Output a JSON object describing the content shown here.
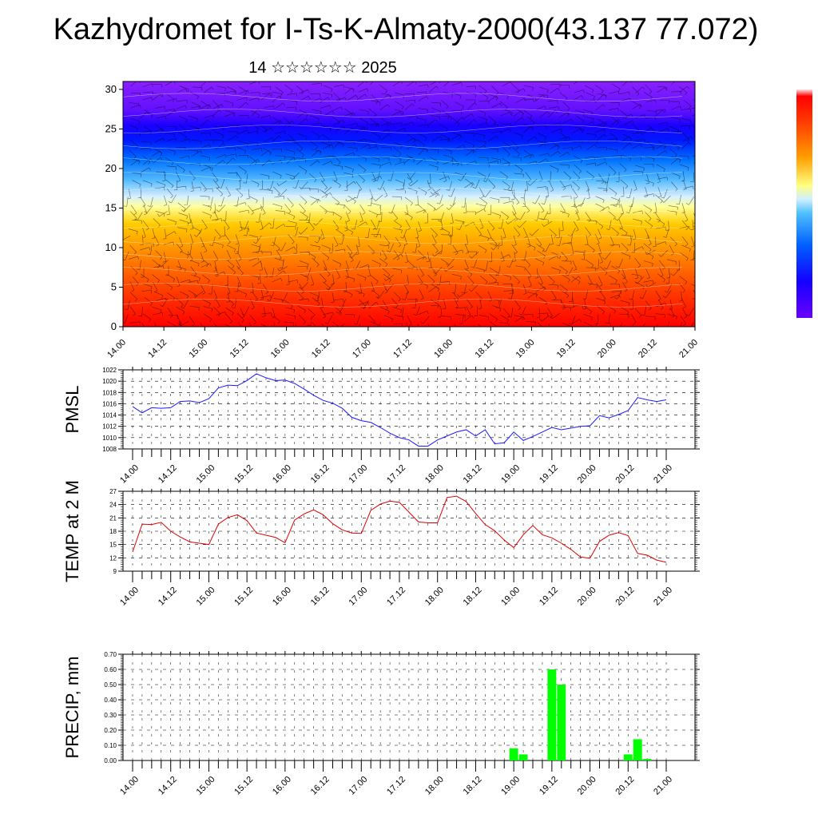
{
  "title": "Kazhydromet for I-Ts-K-Almaty-2000(43.137 77.072)",
  "subtitle": "14 ☆☆☆☆☆☆ 2025",
  "colors": {
    "pmsl_line": "#1a1aff",
    "temp_line": "#e00000",
    "precip_bar": "#00ff00",
    "colorbar": [
      "#ff0000",
      "#ff4000",
      "#ff8000",
      "#ffb000",
      "#ffe000",
      "#ffff90",
      "#b0e0ff",
      "#40b0ff",
      "#0080ff",
      "#0030ff",
      "#2000ff",
      "#8020ff"
    ]
  },
  "chart_data": [
    {
      "type": "heatmap",
      "title": "",
      "xlabel": "",
      "ylabel": "",
      "x_tick_labels": [
        "14.00",
        "14.12",
        "15.00",
        "15.12",
        "16.00",
        "16.12",
        "17.00",
        "17.12",
        "18.00",
        "18.12",
        "19.00",
        "19.12",
        "20.00",
        "20.12",
        "21.00"
      ],
      "y_ticks": [
        0,
        5,
        10,
        15,
        20,
        25,
        30
      ],
      "ylim": [
        0,
        31
      ],
      "field": "temperature cross-section with wind barbs",
      "colormap": "red (low levels) to violet (upper levels)",
      "colorbar_labels": []
    },
    {
      "type": "line",
      "ylabel": "PMSL",
      "ylim": [
        1008,
        1022
      ],
      "y_ticks": [
        1008,
        1010,
        1012,
        1014,
        1016,
        1018,
        1020,
        1022
      ],
      "x_tick_labels": [
        "14.00",
        "14.12",
        "15.00",
        "15.12",
        "16.00",
        "16.12",
        "17.00",
        "17.12",
        "18.00",
        "18.12",
        "19.00",
        "19.12",
        "20.00",
        "20.12",
        "21.00"
      ],
      "step_hours": 3,
      "series": [
        {
          "values": [
            1015.5,
            1014.4,
            1015.3,
            1015.2,
            1015.3,
            1016.4,
            1016.5,
            1016.2,
            1016.9,
            1018.8,
            1019.3,
            1019.2,
            1020.1,
            1021.3,
            1020.6,
            1020.1,
            1020.2,
            1019.6,
            1018.6,
            1017.5,
            1016.6,
            1016.1,
            1015.2,
            1013.6,
            1013.0,
            1012.7,
            1011.8,
            1010.8,
            1010.0,
            1009.6,
            1008.5,
            1008.5,
            1009.6,
            1010.3,
            1011.0,
            1011.4,
            1010.3,
            1011.4,
            1008.9,
            1009.1,
            1011.0,
            1009.5,
            1010.2,
            1011.0,
            1011.8,
            1011.4,
            1011.7,
            1012.0,
            1012.1,
            1013.9,
            1013.5,
            1014.1,
            1014.8,
            1017.1,
            1016.7,
            1016.4,
            1016.7
          ]
        }
      ]
    },
    {
      "type": "line",
      "ylabel": "TEMP at 2 M",
      "ylim": [
        9,
        27
      ],
      "y_ticks": [
        9,
        12,
        15,
        18,
        21,
        24,
        27
      ],
      "x_tick_labels": [
        "14.00",
        "14.12",
        "15.00",
        "15.12",
        "16.00",
        "16.12",
        "17.00",
        "17.12",
        "18.00",
        "18.12",
        "19.00",
        "19.12",
        "20.00",
        "20.12",
        "21.00"
      ],
      "step_hours": 3,
      "series": [
        {
          "values": [
            13.3,
            19.6,
            19.5,
            20.0,
            18.0,
            16.7,
            15.6,
            15.3,
            15.0,
            19.6,
            21.1,
            21.7,
            20.4,
            17.6,
            17.1,
            16.6,
            15.4,
            20.5,
            21.9,
            22.8,
            21.7,
            19.7,
            18.3,
            17.6,
            17.5,
            22.7,
            24.1,
            24.8,
            24.5,
            22.3,
            20.1,
            19.9,
            19.9,
            25.6,
            25.9,
            24.7,
            22.0,
            19.5,
            18.1,
            16.0,
            14.3,
            17.2,
            19.3,
            17.2,
            16.5,
            15.3,
            13.9,
            12.2,
            11.9,
            15.7,
            17.1,
            17.7,
            17.0,
            13.0,
            12.6,
            11.5,
            11.0
          ]
        }
      ]
    },
    {
      "type": "bar",
      "ylabel": "PRECIP, mm",
      "ylim": [
        0,
        0.7
      ],
      "y_tick_labels": [
        "0.00",
        "0.10",
        "0.20",
        "0.30",
        "0.40",
        "0.50",
        "0.60",
        "0.70"
      ],
      "x_tick_labels": [
        "14.00",
        "14.12",
        "15.00",
        "15.12",
        "16.00",
        "16.12",
        "17.00",
        "17.12",
        "18.00",
        "18.12",
        "19.00",
        "19.12",
        "20.00",
        "20.12",
        "21.00"
      ],
      "step_hours": 3,
      "values": [
        0,
        0,
        0,
        0,
        0,
        0,
        0,
        0,
        0,
        0,
        0,
        0,
        0,
        0,
        0,
        0,
        0,
        0,
        0,
        0,
        0,
        0,
        0,
        0,
        0,
        0,
        0,
        0,
        0,
        0,
        0,
        0,
        0,
        0,
        0,
        0,
        0,
        0,
        0,
        0,
        0.08,
        0.04,
        0,
        0,
        0.6,
        0.5,
        0,
        0,
        0,
        0,
        0,
        0,
        0.04,
        0.14,
        0.01,
        0,
        0
      ]
    }
  ]
}
